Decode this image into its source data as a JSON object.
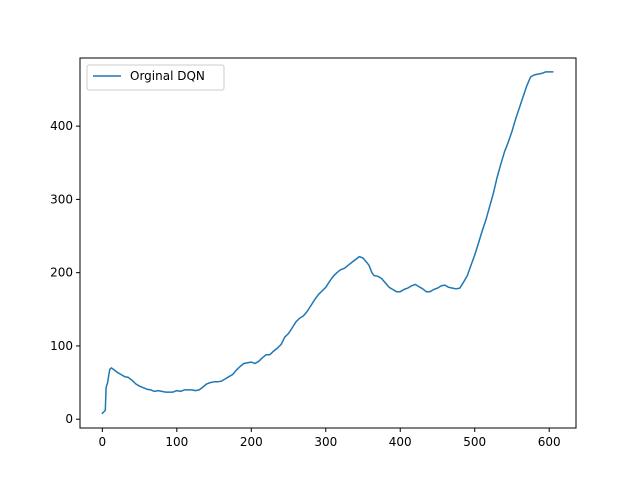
{
  "chart_data": {
    "type": "line",
    "title": "",
    "xlabel": "",
    "ylabel": "",
    "xlim": [
      -30,
      636
    ],
    "ylim": [
      -12,
      493
    ],
    "xticks": [
      0,
      100,
      200,
      300,
      400,
      500,
      600
    ],
    "yticks": [
      0,
      100,
      200,
      300,
      400
    ],
    "grid": false,
    "legend_position": "top-left",
    "series": [
      {
        "name": "Orginal DQN",
        "color": "#1f77b4",
        "x": [
          0,
          2,
          4,
          5,
          7,
          9,
          10,
          12,
          15,
          20,
          25,
          30,
          35,
          40,
          45,
          50,
          55,
          60,
          65,
          70,
          75,
          80,
          85,
          90,
          95,
          100,
          105,
          110,
          115,
          120,
          125,
          130,
          135,
          140,
          145,
          150,
          155,
          160,
          165,
          170,
          175,
          180,
          185,
          190,
          195,
          200,
          205,
          210,
          215,
          220,
          225,
          230,
          235,
          240,
          245,
          250,
          255,
          260,
          265,
          270,
          275,
          280,
          285,
          290,
          295,
          300,
          305,
          310,
          315,
          320,
          325,
          330,
          335,
          340,
          345,
          350,
          355,
          358,
          360,
          362,
          365,
          370,
          375,
          380,
          385,
          390,
          395,
          400,
          405,
          410,
          415,
          420,
          425,
          430,
          435,
          440,
          445,
          450,
          455,
          460,
          465,
          470,
          475,
          480,
          485,
          490,
          495,
          500,
          505,
          510,
          515,
          520,
          525,
          530,
          535,
          540,
          545,
          550,
          555,
          560,
          565,
          570,
          575,
          580,
          585,
          590,
          595,
          600,
          603,
          605
        ],
        "y": [
          8,
          10,
          12,
          43,
          50,
          62,
          68,
          70,
          68,
          64,
          61,
          58,
          57,
          53,
          48,
          45,
          43,
          41,
          40,
          38,
          39,
          38,
          37,
          37,
          37,
          39,
          38,
          40,
          40,
          40,
          39,
          40,
          44,
          48,
          50,
          51,
          51,
          52,
          55,
          58,
          61,
          67,
          72,
          76,
          77,
          78,
          76,
          79,
          84,
          88,
          88,
          93,
          97,
          102,
          112,
          117,
          125,
          133,
          138,
          141,
          147,
          155,
          163,
          170,
          175,
          180,
          188,
          195,
          200,
          204,
          206,
          210,
          214,
          218,
          222,
          220,
          214,
          210,
          205,
          200,
          196,
          195,
          192,
          186,
          180,
          177,
          174,
          174,
          177,
          179,
          182,
          184,
          181,
          178,
          174,
          174,
          177,
          179,
          182,
          183,
          180,
          179,
          178,
          179,
          187,
          196,
          210,
          224,
          240,
          257,
          272,
          290,
          308,
          330,
          348,
          365,
          378,
          393,
          410,
          425,
          440,
          455,
          467,
          470,
          471,
          472,
          474,
          474,
          474,
          474
        ]
      }
    ]
  }
}
